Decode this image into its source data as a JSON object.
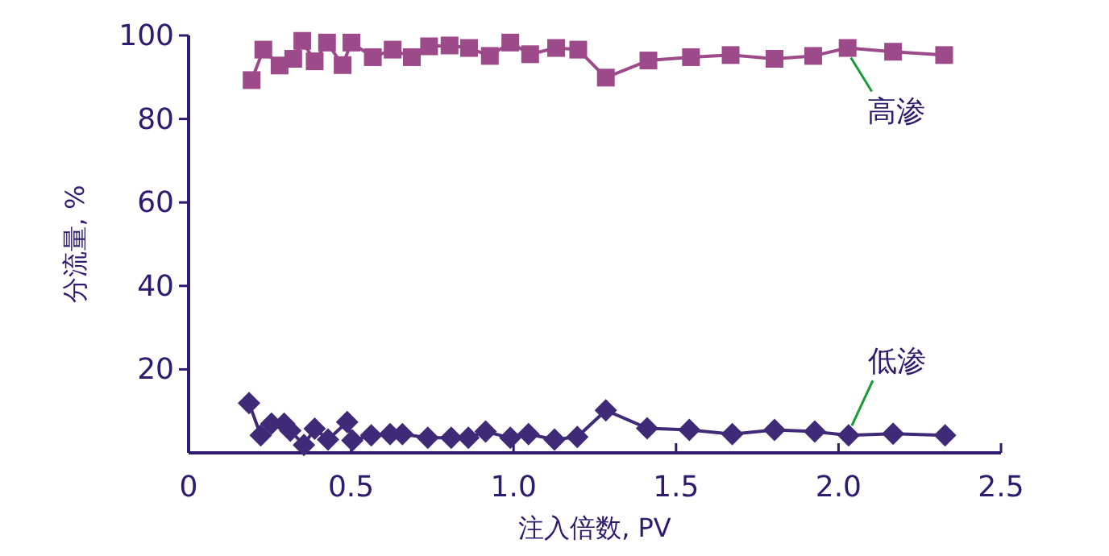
{
  "chart_data": {
    "type": "line",
    "xlabel": "注入倍数, PV",
    "ylabel": "分流量, %",
    "xlim": [
      0,
      2.5
    ],
    "ylim": [
      0,
      100
    ],
    "xticks": [
      0,
      {
        "value": 0.5,
        "label": "0.5"
      },
      {
        "value": 1,
        "label": "1.0"
      },
      {
        "value": 1.5,
        "label": "1.5"
      },
      {
        "value": 2,
        "label": "2.0"
      },
      {
        "value": 2.5,
        "label": "2.5"
      }
    ],
    "yticks": [
      20,
      40,
      60,
      80,
      100
    ],
    "grid": false,
    "line_style": "solid",
    "series": [
      {
        "name": "高渗",
        "color": "#9c4a8a",
        "marker": "square",
        "x": [
          0.194,
          0.23,
          0.28,
          0.322,
          0.35,
          0.388,
          0.426,
          0.474,
          0.501,
          0.567,
          0.628,
          0.687,
          0.74,
          0.803,
          0.863,
          0.927,
          0.99,
          1.051,
          1.131,
          1.199,
          1.284,
          1.415,
          1.546,
          1.668,
          1.803,
          1.922,
          2.028,
          2.168,
          2.325
        ],
        "values": [
          89.3,
          96.6,
          92.8,
          94.4,
          98.7,
          93.8,
          98.3,
          92.9,
          98.3,
          94.8,
          96.6,
          94.8,
          97.4,
          97.6,
          97.0,
          95.1,
          98.3,
          95.5,
          97.0,
          96.6,
          89.9,
          94.0,
          94.8,
          95.3,
          94.4,
          95.1,
          97.0,
          96.1,
          95.3
        ]
      },
      {
        "name": "低渗",
        "color": "#3f2a78",
        "marker": "diamond",
        "x": [
          0.186,
          0.222,
          0.255,
          0.294,
          0.313,
          0.355,
          0.388,
          0.429,
          0.488,
          0.504,
          0.562,
          0.62,
          0.658,
          0.736,
          0.808,
          0.861,
          0.914,
          0.99,
          1.046,
          1.126,
          1.196,
          1.284,
          1.411,
          1.541,
          1.673,
          1.803,
          1.927,
          2.031,
          2.168,
          2.328
        ],
        "values": [
          11.9,
          4.2,
          7.0,
          7.0,
          5.3,
          1.9,
          5.8,
          3.2,
          7.4,
          3.0,
          4.2,
          4.5,
          4.5,
          3.6,
          3.6,
          3.6,
          5.1,
          3.6,
          4.5,
          3.2,
          3.8,
          10.2,
          5.9,
          5.5,
          4.5,
          5.5,
          5.1,
          4.2,
          4.6,
          4.2
        ]
      }
    ]
  }
}
